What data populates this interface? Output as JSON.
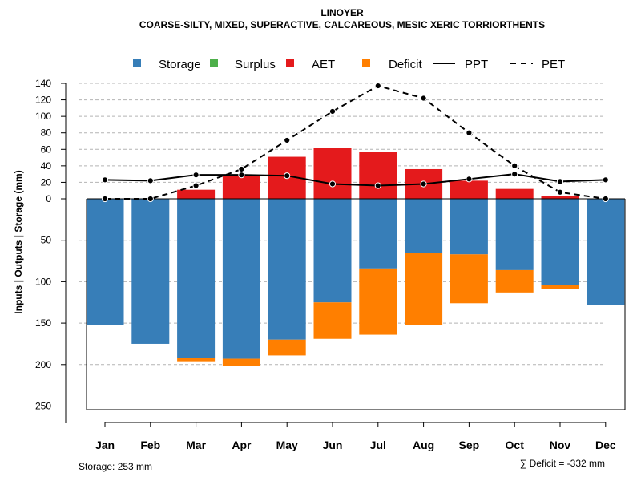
{
  "chart_data": {
    "type": "bar",
    "title": "LINOYER",
    "subtitle": "COARSE-SILTY, MIXED, SUPERACTIVE, CALCAREOUS, MESIC XERIC TORRIORTHENTS",
    "ylabel": "Inputs | Outputs | Storage     (mm)",
    "categories": [
      "Jan",
      "Feb",
      "Mar",
      "Apr",
      "May",
      "Jun",
      "Jul",
      "Aug",
      "Sep",
      "Oct",
      "Nov",
      "Dec"
    ],
    "upper_axis": {
      "ylim": [
        0,
        140
      ],
      "ticks": [
        0,
        20,
        40,
        60,
        80,
        100,
        120,
        140
      ]
    },
    "lower_axis": {
      "ylim": [
        0,
        253
      ],
      "ticks": [
        50,
        100,
        150,
        200,
        250
      ]
    },
    "legend": [
      {
        "label": "Storage",
        "color": "#377EB8",
        "kind": "box"
      },
      {
        "label": "Surplus",
        "color": "#4DAF4A",
        "kind": "box"
      },
      {
        "label": "AET",
        "color": "#E41A1C",
        "kind": "box"
      },
      {
        "label": "Deficit",
        "color": "#FF7F00",
        "kind": "box"
      },
      {
        "label": "PPT",
        "color": "#000000",
        "kind": "solid"
      },
      {
        "label": "PET",
        "color": "#000000",
        "kind": "dashed"
      }
    ],
    "series": [
      {
        "name": "Storage",
        "color": "#377EB8",
        "values": [
          152,
          175,
          192,
          193,
          170,
          125,
          84,
          65,
          67,
          86,
          104,
          128
        ]
      },
      {
        "name": "Deficit",
        "color": "#FF7F00",
        "values": [
          0,
          0,
          4,
          9,
          19,
          44,
          80,
          87,
          59,
          27,
          5,
          0
        ]
      },
      {
        "name": "Surplus",
        "color": "#4DAF4A",
        "values": [
          0,
          0,
          0,
          0,
          0,
          0,
          0,
          0,
          0,
          0,
          0,
          0
        ]
      },
      {
        "name": "AET",
        "color": "#E41A1C",
        "values": [
          0,
          0,
          11,
          29,
          51,
          62,
          57,
          36,
          22,
          12,
          3,
          0
        ]
      },
      {
        "name": "PPT",
        "color": "#000000",
        "values": [
          23,
          22,
          29,
          29,
          28,
          18,
          16,
          18,
          24,
          30,
          21,
          23
        ]
      },
      {
        "name": "PET",
        "color": "#000000",
        "values": [
          0,
          0,
          16,
          36,
          71,
          106,
          137,
          122,
          80,
          40,
          8,
          0
        ]
      }
    ]
  },
  "footer": {
    "storage_text": "Storage: 253 mm",
    "deficit_text": "∑ Deficit = -332 mm"
  }
}
